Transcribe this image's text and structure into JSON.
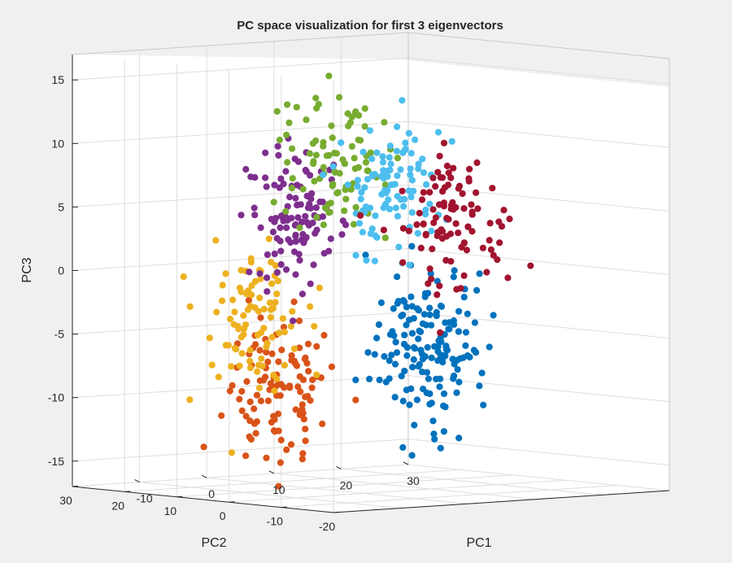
{
  "chart_data": {
    "type": "scatter",
    "title": "PC space visualization for first 3 eigenvectors",
    "xlabel": "PC1",
    "ylabel": "PC2",
    "zlabel": "PC3",
    "xlim": [
      -20,
      30
    ],
    "ylim": [
      -20,
      30
    ],
    "zlim": [
      -17,
      17
    ],
    "xticks": [
      -10,
      0,
      10,
      20,
      30
    ],
    "yticks": [
      -20,
      -10,
      0,
      10,
      20,
      30
    ],
    "zticks": [
      -15,
      -10,
      -5,
      0,
      5,
      10,
      15
    ],
    "grid": true,
    "view": "3d",
    "series": [
      {
        "color": "#0072bd",
        "count": 160,
        "cluster_center": {
          "PC1": 0,
          "PC3": -7
        }
      },
      {
        "color": "#d95319",
        "count": 110,
        "cluster_center": {
          "PC1": -22,
          "PC3": -10
        }
      },
      {
        "color": "#edb120",
        "count": 90,
        "cluster_center": {
          "PC1": -26,
          "PC3": -4
        }
      },
      {
        "color": "#7e2f8e",
        "count": 110,
        "cluster_center": {
          "PC1": -20,
          "PC3": 3.5
        }
      },
      {
        "color": "#77ac30",
        "count": 90,
        "cluster_center": {
          "PC1": -14,
          "PC3": 8
        }
      },
      {
        "color": "#4dbeee",
        "count": 100,
        "cluster_center": {
          "PC1": -6,
          "PC3": 6
        }
      },
      {
        "color": "#a2142f",
        "count": 100,
        "cluster_center": {
          "PC1": 4,
          "PC3": 3
        }
      }
    ]
  }
}
